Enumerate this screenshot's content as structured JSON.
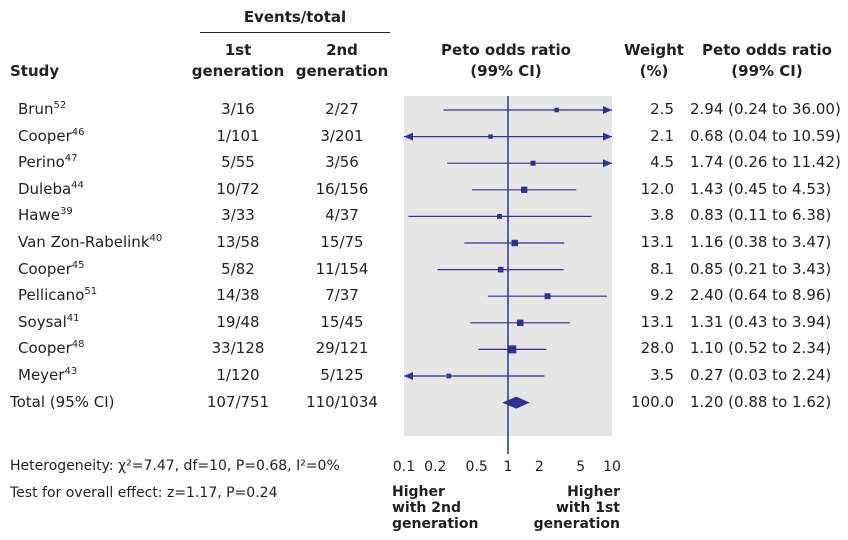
{
  "header": {
    "events_total": "Events/total",
    "study": "Study",
    "gen1_line1": "1st",
    "gen1_line2": "generation",
    "gen2_line1": "2nd",
    "gen2_line2": "generation",
    "or_line1": "Peto odds ratio",
    "or_line2": "(99% CI)",
    "weight_line1": "Weight",
    "weight_line2": "(%)",
    "ortext_line1": "Peto odds ratio",
    "ortext_line2": "(99% CI)"
  },
  "footer": {
    "heterogeneity": "Heterogeneity: χ²=7.47, df=10, P=0.68, I²=0%",
    "overall": "Test for overall effect: z=1.17, P=0.24",
    "left_label": [
      "Higher",
      "with 2nd",
      "generation"
    ],
    "right_label": [
      "Higher",
      "with 1st",
      "generation"
    ]
  },
  "colors": {
    "plot_bg": "#e6e6e6",
    "marks": "#2e3192",
    "text": "#231f20"
  },
  "chart_data": {
    "type": "forest",
    "xscale": "log",
    "xlim": [
      0.1,
      10
    ],
    "xticks": [
      "0.1",
      "0.2",
      "0.5",
      "1",
      "2",
      "5",
      "10"
    ],
    "xtick_values": [
      0.1,
      0.2,
      0.5,
      1,
      2,
      5,
      10
    ],
    "reference_line": 1,
    "studies": [
      {
        "name": "Brun",
        "ref": "52",
        "gen1": "3/16",
        "gen2": "2/27",
        "or": 2.94,
        "lo": 0.24,
        "hi": 36.0,
        "weight": "2.5",
        "ci_text": "2.94 (0.24 to 36.00)"
      },
      {
        "name": "Cooper",
        "ref": "46",
        "gen1": "1/101",
        "gen2": "3/201",
        "or": 0.68,
        "lo": 0.04,
        "hi": 10.59,
        "weight": "2.1",
        "ci_text": "0.68 (0.04 to 10.59)"
      },
      {
        "name": "Perino",
        "ref": "47",
        "gen1": "5/55",
        "gen2": "3/56",
        "or": 1.74,
        "lo": 0.26,
        "hi": 11.42,
        "weight": "4.5",
        "ci_text": "1.74 (0.26 to 11.42)"
      },
      {
        "name": "Duleba",
        "ref": "44",
        "gen1": "10/72",
        "gen2": "16/156",
        "or": 1.43,
        "lo": 0.45,
        "hi": 4.53,
        "weight": "12.0",
        "ci_text": "1.43 (0.45 to 4.53)"
      },
      {
        "name": "Hawe",
        "ref": "39",
        "gen1": "3/33",
        "gen2": "4/37",
        "or": 0.83,
        "lo": 0.11,
        "hi": 6.38,
        "weight": "3.8",
        "ci_text": "0.83 (0.11 to 6.38)"
      },
      {
        "name": "Van Zon-Rabelink",
        "ref": "40",
        "gen1": "13/58",
        "gen2": "15/75",
        "or": 1.16,
        "lo": 0.38,
        "hi": 3.47,
        "weight": "13.1",
        "ci_text": "1.16 (0.38 to 3.47)"
      },
      {
        "name": "Cooper",
        "ref": "45",
        "gen1": "5/82",
        "gen2": "11/154",
        "or": 0.85,
        "lo": 0.21,
        "hi": 3.43,
        "weight": "8.1",
        "ci_text": "0.85 (0.21 to 3.43)"
      },
      {
        "name": "Pellicano",
        "ref": "51",
        "gen1": "14/38",
        "gen2": "7/37",
        "or": 2.4,
        "lo": 0.64,
        "hi": 8.96,
        "weight": "9.2",
        "ci_text": "2.40 (0.64 to 8.96)"
      },
      {
        "name": "Soysal",
        "ref": "41",
        "gen1": "19/48",
        "gen2": "15/45",
        "or": 1.31,
        "lo": 0.43,
        "hi": 3.94,
        "weight": "13.1",
        "ci_text": "1.31 (0.43 to 3.94)"
      },
      {
        "name": "Cooper",
        "ref": "48",
        "gen1": "33/128",
        "gen2": "29/121",
        "or": 1.1,
        "lo": 0.52,
        "hi": 2.34,
        "weight": "28.0",
        "ci_text": "1.10 (0.52 to 2.34)"
      },
      {
        "name": "Meyer",
        "ref": "43",
        "gen1": "1/120",
        "gen2": "5/125",
        "or": 0.27,
        "lo": 0.03,
        "hi": 2.24,
        "weight": "3.5",
        "ci_text": "0.27 (0.03 to 2.24)"
      }
    ],
    "total": {
      "name": "Total (95% CI)",
      "gen1": "107/751",
      "gen2": "110/1034",
      "or": 1.2,
      "lo": 0.88,
      "hi": 1.62,
      "weight": "100.0",
      "ci_text": "1.20 (0.88 to 1.62)"
    }
  }
}
